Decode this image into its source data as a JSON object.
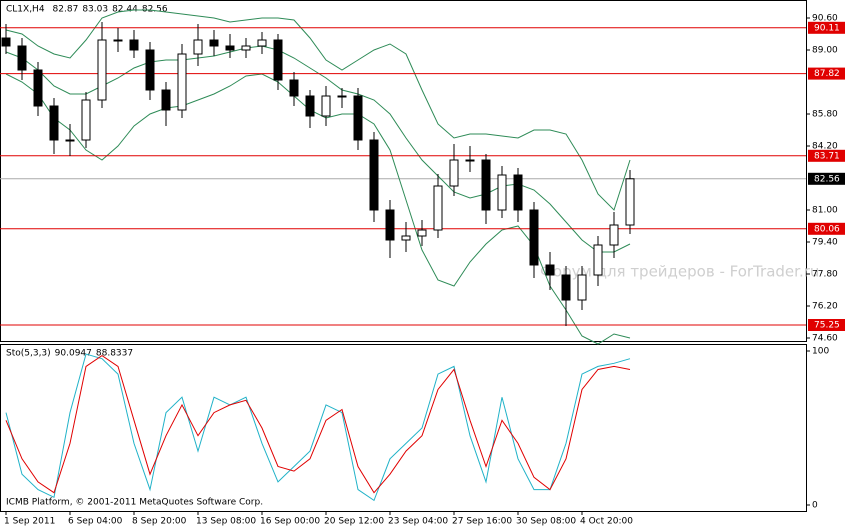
{
  "chart_data": [
    {
      "type": "candlestick",
      "title": "CL1X,H4",
      "readout": [
        82.87,
        83.03,
        82.44,
        82.56
      ],
      "watermark": "Форум для трейдеров - ForTrader.ru",
      "footer": "ICMB Platform, © 2001-2011 MetaQuotes Software Corp.",
      "categories": [
        "1 Sep 2011",
        null,
        null,
        null,
        "6 Sep 04:00",
        null,
        null,
        null,
        "8 Sep 20:00",
        null,
        null,
        null,
        "13 Sep 08:00",
        null,
        null,
        null,
        "16 Sep 00:00",
        null,
        null,
        null,
        "20 Sep 12:00",
        null,
        null,
        null,
        "23 Sep 04:00",
        null,
        null,
        null,
        "27 Sep 16:00",
        null,
        null,
        null,
        "30 Sep 08:00",
        null,
        null,
        null,
        "4 Oct 20:00",
        null,
        null,
        null
      ],
      "open": [
        89.6,
        89.2,
        88.0,
        86.2,
        84.5,
        84.5,
        86.5,
        89.5,
        89.5,
        89.0,
        87.0,
        86.0,
        88.8,
        89.5,
        89.2,
        89.0,
        89.2,
        89.5,
        87.5,
        86.7,
        85.7,
        86.7,
        86.7,
        84.5,
        81.0,
        79.5,
        79.7,
        80.0,
        82.2,
        83.5,
        83.5,
        81.0,
        82.75,
        81.0,
        78.25,
        77.75,
        76.5,
        77.75,
        79.25,
        80.25
      ],
      "high": [
        90.3,
        89.6,
        88.4,
        86.6,
        85.3,
        86.9,
        90.4,
        90.1,
        90.0,
        89.4,
        87.4,
        89.3,
        90.3,
        90.0,
        89.8,
        89.6,
        89.9,
        89.8,
        87.9,
        87.0,
        87.2,
        87.1,
        87.1,
        84.9,
        81.5,
        80.4,
        80.5,
        82.8,
        84.3,
        84.2,
        83.8,
        83.2,
        83.1,
        81.4,
        78.9,
        78.2,
        78.2,
        79.7,
        80.9,
        83.0
      ],
      "low": [
        88.8,
        87.5,
        85.7,
        83.8,
        83.7,
        84.1,
        86.1,
        88.9,
        88.6,
        86.5,
        85.2,
        85.6,
        88.2,
        88.7,
        88.6,
        88.6,
        88.8,
        87.0,
        86.2,
        85.1,
        85.2,
        86.1,
        84.0,
        80.4,
        78.6,
        78.9,
        79.2,
        79.6,
        81.7,
        82.9,
        80.3,
        80.6,
        80.4,
        77.6,
        77.0,
        75.2,
        76.0,
        77.2,
        78.6,
        79.8
      ],
      "close": [
        89.2,
        88.0,
        86.2,
        84.5,
        84.5,
        86.5,
        89.5,
        89.5,
        89.0,
        87.0,
        86.0,
        88.8,
        89.5,
        89.2,
        89.0,
        89.2,
        89.5,
        87.5,
        86.7,
        85.7,
        86.7,
        86.7,
        84.5,
        81.0,
        79.5,
        79.7,
        80.0,
        82.2,
        83.5,
        83.5,
        81.0,
        82.75,
        81.0,
        78.25,
        77.75,
        76.5,
        77.75,
        79.25,
        80.25,
        82.56
      ],
      "series": [
        {
          "color": "#2e8b57",
          "values": [
            90.0,
            89.8,
            89.2,
            88.8,
            88.6,
            89.5,
            90.6,
            90.9,
            91.0,
            91.0,
            90.9,
            90.8,
            90.7,
            90.6,
            90.4,
            90.5,
            90.6,
            90.6,
            90.5,
            89.6,
            88.5,
            88.0,
            88.5,
            89.0,
            89.3,
            88.8,
            87.0,
            85.3,
            84.6,
            84.8,
            84.8,
            84.7,
            84.6,
            85.0,
            85.0,
            84.8,
            83.5,
            81.8,
            81.0,
            83.5
          ]
        },
        {
          "color": "#2e8b57",
          "values": [
            88.9,
            88.6,
            88.0,
            87.2,
            86.8,
            86.8,
            87.2,
            87.6,
            88.1,
            88.4,
            88.5,
            88.5,
            88.6,
            88.7,
            88.9,
            89.1,
            89.2,
            89.0,
            88.6,
            88.1,
            87.6,
            87.0,
            86.8,
            86.5,
            85.8,
            84.6,
            83.5,
            82.7,
            81.9,
            81.6,
            81.8,
            82.2,
            82.3,
            82.0,
            81.3,
            80.4,
            79.5,
            78.9,
            78.9,
            79.3
          ]
        },
        {
          "color": "#2e8b57",
          "values": [
            87.8,
            87.4,
            86.8,
            85.6,
            85.0,
            84.0,
            83.5,
            84.2,
            85.2,
            85.8,
            86.1,
            86.2,
            86.5,
            86.8,
            87.2,
            87.7,
            87.8,
            87.4,
            86.7,
            86.0,
            85.6,
            85.8,
            85.8,
            85.3,
            84.0,
            81.5,
            79.0,
            77.5,
            77.2,
            78.4,
            79.3,
            80.0,
            80.2,
            79.2,
            77.2,
            76.0,
            74.7,
            74.3,
            74.8,
            74.6
          ]
        }
      ],
      "levels": [
        90.11,
        87.82,
        83.71,
        80.06,
        75.25
      ],
      "level_color": "#e00000",
      "last": 82.56,
      "ylim": [
        74.5,
        91.5
      ],
      "yticks": [
        {
          "value": 90.6,
          "label": "90.60"
        },
        {
          "value": 89,
          "label": "89.00"
        },
        {
          "value": 85.8,
          "label": "85.80"
        },
        {
          "value": 84.2,
          "label": "84.20"
        },
        {
          "value": 81,
          "label": "81.00"
        },
        {
          "value": 79.4,
          "label": "79.40"
        },
        {
          "value": 77.8,
          "label": "77.80"
        },
        {
          "value": 76.2,
          "label": "76.20"
        },
        {
          "value": 74.6,
          "label": "74.60"
        }
      ]
    },
    {
      "type": "line",
      "title": "Sto(5,3,3)",
      "readout": [
        90.0947,
        88.8337
      ],
      "series": [
        {
          "color": "#20b2c8",
          "values": [
            60,
            20,
            10,
            5,
            60,
            98,
            95,
            85,
            40,
            10,
            60,
            70,
            35,
            70,
            65,
            70,
            40,
            15,
            25,
            35,
            65,
            60,
            10,
            3,
            30,
            40,
            50,
            85,
            90,
            45,
            15,
            70,
            30,
            10,
            10,
            40,
            85,
            90,
            92,
            95
          ]
        },
        {
          "color": "#e00000",
          "values": [
            55,
            30,
            15,
            8,
            40,
            90,
            97,
            90,
            55,
            20,
            45,
            65,
            45,
            60,
            65,
            68,
            50,
            25,
            22,
            30,
            55,
            62,
            25,
            8,
            20,
            35,
            45,
            75,
            88,
            55,
            25,
            55,
            40,
            18,
            10,
            30,
            75,
            88,
            90,
            88
          ]
        }
      ],
      "ylim": [
        0,
        100
      ],
      "yticks": [
        0,
        100
      ]
    }
  ]
}
